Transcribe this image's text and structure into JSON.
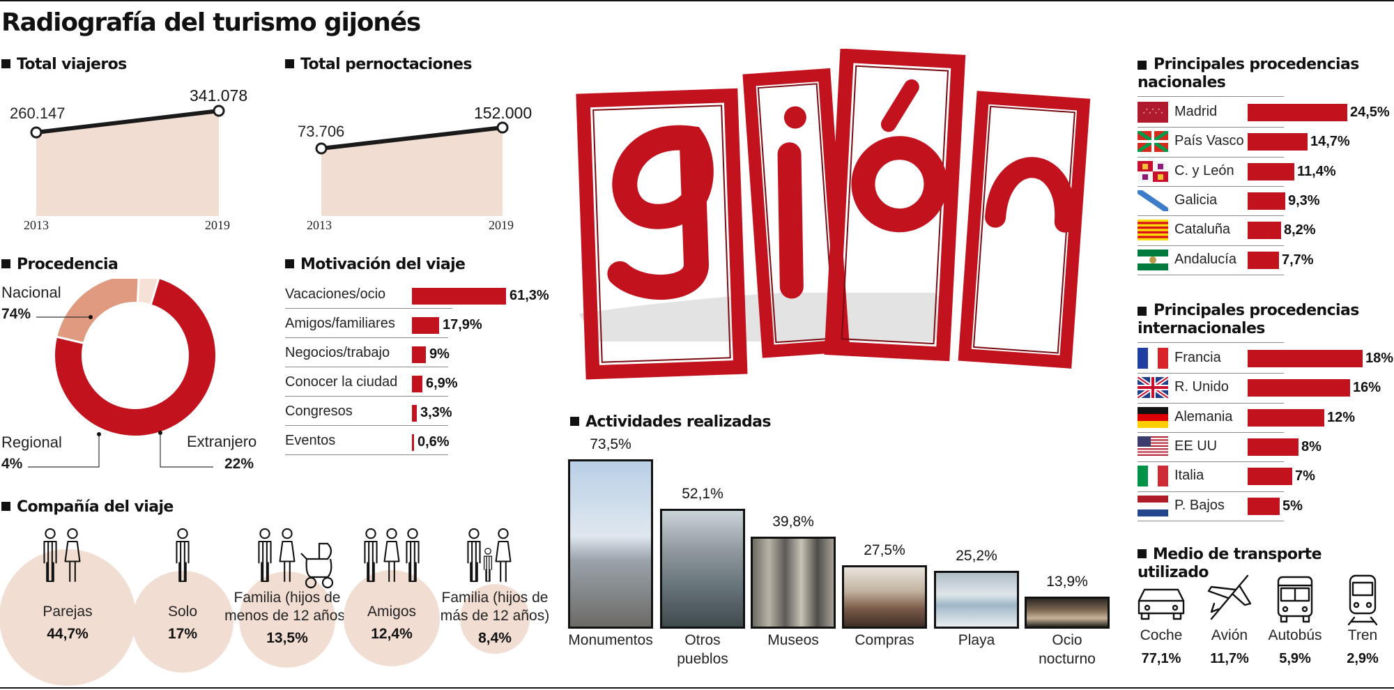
{
  "title": "Radiografía del turismo gijonés",
  "colors": {
    "accent": "#c1121d",
    "area_fill": "#f2ddd2",
    "extranjero": "#df9a80",
    "regional": "#f5e1d6",
    "circle": "#f1ddd2"
  },
  "charts": {
    "viajeros": {
      "title": "Total viajeros",
      "x": [
        "2013",
        "2019"
      ],
      "values": [
        260147,
        341078
      ],
      "labels": [
        "260.147",
        "341.078"
      ]
    },
    "pernoctaciones": {
      "title": "Total pernoctaciones",
      "x": [
        "2013",
        "2019"
      ],
      "values": [
        73706,
        152000
      ],
      "labels": [
        "73.706",
        "152.000"
      ]
    },
    "procedencia": {
      "title": "Procedencia",
      "slices": [
        {
          "name": "Nacional",
          "value": 74,
          "label": "74%"
        },
        {
          "name": "Extranjero",
          "value": 22,
          "label": "22%"
        },
        {
          "name": "Regional",
          "value": 4,
          "label": "4%"
        }
      ]
    },
    "motivacion": {
      "title": "Motivación del viaje",
      "items": [
        {
          "name": "Vacaciones/ocio",
          "value": 61.3,
          "label": "61,3%"
        },
        {
          "name": "Amigos/familiares",
          "value": 17.9,
          "label": "17,9%"
        },
        {
          "name": "Negocios/trabajo",
          "value": 9,
          "label": "9%"
        },
        {
          "name": "Conocer la ciudad",
          "value": 6.9,
          "label": "6,9%"
        },
        {
          "name": "Congresos",
          "value": 3.3,
          "label": "3,3%"
        },
        {
          "name": "Eventos",
          "value": 0.6,
          "label": "0,6%"
        }
      ]
    },
    "compania": {
      "title": "Compañía del viaje",
      "items": [
        {
          "name": "Parejas",
          "value": 44.7,
          "label": "44,7%",
          "icon": "couple-icon"
        },
        {
          "name": "Solo",
          "value": 17,
          "label": "17%",
          "icon": "person-icon"
        },
        {
          "name": "Familia (hijos de menos de 12 años)",
          "name_lines": [
            "Familia (hijos de",
            "menos de 12 años)"
          ],
          "value": 13.5,
          "label": "13,5%",
          "icon": "family-stroller-icon"
        },
        {
          "name": "Amigos",
          "value": 12.4,
          "label": "12,4%",
          "icon": "friends-icon"
        },
        {
          "name": "Familia (hijos de más de 12 años)",
          "name_lines": [
            "Familia (hijos de",
            "más de 12 años)"
          ],
          "value": 8.4,
          "label": "8,4%",
          "icon": "family-icon"
        }
      ]
    },
    "actividades": {
      "title": "Actividades realizadas",
      "items": [
        {
          "name": "Monumentos",
          "name_lines": [
            "Monumentos"
          ],
          "value": 73.5,
          "label": "73,5%"
        },
        {
          "name": "Otros pueblos",
          "name_lines": [
            "Otros",
            "pueblos"
          ],
          "value": 52.1,
          "label": "52,1%"
        },
        {
          "name": "Museos",
          "name_lines": [
            "Museos"
          ],
          "value": 39.8,
          "label": "39,8%"
        },
        {
          "name": "Compras",
          "name_lines": [
            "Compras"
          ],
          "value": 27.5,
          "label": "27,5%"
        },
        {
          "name": "Playa",
          "name_lines": [
            "Playa"
          ],
          "value": 25.2,
          "label": "25,2%"
        },
        {
          "name": "Ocio nocturno",
          "name_lines": [
            "Ocio",
            "nocturno"
          ],
          "value": 13.9,
          "label": "13,9%"
        }
      ]
    },
    "nacionales": {
      "title_lines": [
        "Principales procedencias",
        "nacionales"
      ],
      "items": [
        {
          "name": "Madrid",
          "value": 24.5,
          "label": "24,5%",
          "flag": "madrid-flag"
        },
        {
          "name": "País Vasco",
          "value": 14.7,
          "label": "14,7%",
          "flag": "pais-vasco-flag"
        },
        {
          "name": "C. y León",
          "value": 11.4,
          "label": "11,4%",
          "flag": "castilla-leon-flag"
        },
        {
          "name": "Galicia",
          "value": 9.3,
          "label": "9,3%",
          "flag": "galicia-flag"
        },
        {
          "name": "Cataluña",
          "value": 8.2,
          "label": "8,2%",
          "flag": "cataluna-flag"
        },
        {
          "name": "Andalucía",
          "value": 7.7,
          "label": "7,7%",
          "flag": "andalucia-flag"
        }
      ]
    },
    "internacionales": {
      "title_lines": [
        "Principales procedencias",
        "internacionales"
      ],
      "items": [
        {
          "name": "Francia",
          "value": 18,
          "label": "18%",
          "flag": "france-flag"
        },
        {
          "name": "R. Unido",
          "value": 16,
          "label": "16%",
          "flag": "uk-flag"
        },
        {
          "name": "Alemania",
          "value": 12,
          "label": "12%",
          "flag": "germany-flag"
        },
        {
          "name": "EE UU",
          "value": 8,
          "label": "8%",
          "flag": "usa-flag"
        },
        {
          "name": "Italia",
          "value": 7,
          "label": "7%",
          "flag": "italy-flag"
        },
        {
          "name": "P. Bajos",
          "value": 5,
          "label": "5%",
          "flag": "netherlands-flag"
        }
      ]
    },
    "transporte": {
      "title": "Medio de transporte utilizado",
      "items": [
        {
          "name": "Coche",
          "value": 77.1,
          "label": "77,1%",
          "icon": "car-icon"
        },
        {
          "name": "Avión",
          "value": 11.7,
          "label": "11,7%",
          "icon": "plane-icon"
        },
        {
          "name": "Autobús",
          "value": 5.9,
          "label": "5,9%",
          "icon": "bus-icon"
        },
        {
          "name": "Tren",
          "value": 2.9,
          "label": "2,9%",
          "icon": "train-icon"
        }
      ]
    }
  },
  "chart_data": [
    {
      "type": "line",
      "title": "Total viajeros",
      "x": [
        "2013",
        "2019"
      ],
      "series": [
        {
          "values": [
            260147,
            341078
          ]
        }
      ]
    },
    {
      "type": "line",
      "title": "Total pernoctaciones",
      "x": [
        "2013",
        "2019"
      ],
      "series": [
        {
          "values": [
            73706,
            152000
          ]
        }
      ]
    },
    {
      "type": "pie",
      "title": "Procedencia",
      "categories": [
        "Nacional",
        "Extranjero",
        "Regional"
      ],
      "values": [
        74,
        22,
        4
      ]
    },
    {
      "type": "bar",
      "title": "Motivación del viaje",
      "categories": [
        "Vacaciones/ocio",
        "Amigos/familiares",
        "Negocios/trabajo",
        "Conocer la ciudad",
        "Congresos",
        "Eventos"
      ],
      "values": [
        61.3,
        17.9,
        9,
        6.9,
        3.3,
        0.6
      ]
    },
    {
      "type": "bar",
      "title": "Compañía del viaje",
      "categories": [
        "Parejas",
        "Solo",
        "Familia (hijos de menos de 12 años)",
        "Amigos",
        "Familia (hijos de más de 12 años)"
      ],
      "values": [
        44.7,
        17,
        13.5,
        12.4,
        8.4
      ]
    },
    {
      "type": "bar",
      "title": "Actividades realizadas",
      "categories": [
        "Monumentos",
        "Otros pueblos",
        "Museos",
        "Compras",
        "Playa",
        "Ocio nocturno"
      ],
      "values": [
        73.5,
        52.1,
        39.8,
        27.5,
        25.2,
        13.9
      ]
    },
    {
      "type": "bar",
      "title": "Principales procedencias nacionales",
      "categories": [
        "Madrid",
        "País Vasco",
        "C. y León",
        "Galicia",
        "Cataluña",
        "Andalucía"
      ],
      "values": [
        24.5,
        14.7,
        11.4,
        9.3,
        8.2,
        7.7
      ]
    },
    {
      "type": "bar",
      "title": "Principales procedencias internacionales",
      "categories": [
        "Francia",
        "R. Unido",
        "Alemania",
        "EE UU",
        "Italia",
        "P. Bajos"
      ],
      "values": [
        18,
        16,
        12,
        8,
        7,
        5
      ]
    },
    {
      "type": "bar",
      "title": "Medio de transporte utilizado",
      "categories": [
        "Coche",
        "Avión",
        "Autobús",
        "Tren"
      ],
      "values": [
        77.1,
        11.7,
        5.9,
        2.9
      ]
    }
  ]
}
